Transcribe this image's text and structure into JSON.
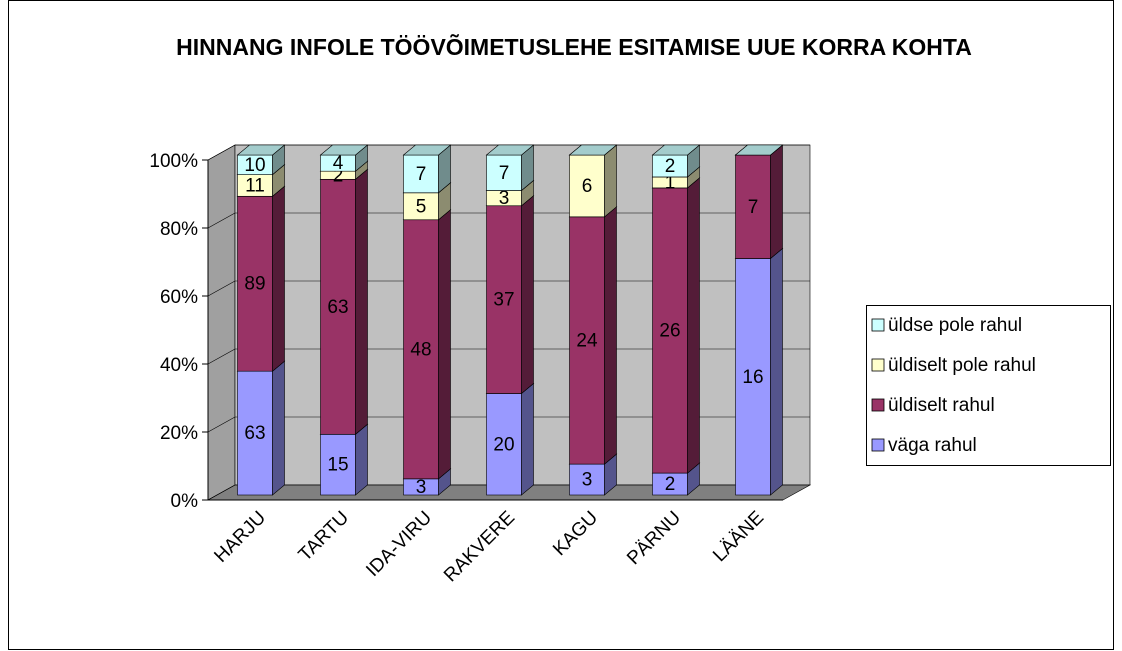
{
  "chart_data": {
    "type": "bar",
    "stacking": "percent",
    "title": "HINNANG INFOLE TÖÖVÕIMETUSLEHE ESITAMISE UUE KORRA KOHTA",
    "categories": [
      "HARJU",
      "TARTU",
      "IDA-VIRU",
      "RAKVERE",
      "KAGU",
      "PÄRNU",
      "LÄÄNE"
    ],
    "series": [
      {
        "name": "väga rahul",
        "color": "#9999ff",
        "values": [
          63,
          15,
          3,
          20,
          3,
          2,
          16
        ]
      },
      {
        "name": "üldiselt rahul",
        "color": "#993366",
        "values": [
          89,
          63,
          48,
          37,
          24,
          26,
          7
        ]
      },
      {
        "name": "üldiselt pole rahul",
        "color": "#ffffcc",
        "values": [
          11,
          2,
          5,
          3,
          6,
          1,
          0
        ]
      },
      {
        "name": "üldse pole rahul",
        "color": "#ccffff",
        "values": [
          10,
          4,
          7,
          7,
          0,
          2,
          0
        ]
      }
    ],
    "ylim": [
      0,
      100
    ],
    "yticks": [
      {
        "value": 0,
        "label": "0%"
      },
      {
        "value": 20,
        "label": "20%"
      },
      {
        "value": 40,
        "label": "40%"
      },
      {
        "value": 60,
        "label": "60%"
      },
      {
        "value": 80,
        "label": "80%"
      },
      {
        "value": 100,
        "label": "100%"
      }
    ],
    "grid": true,
    "legend": "right"
  }
}
